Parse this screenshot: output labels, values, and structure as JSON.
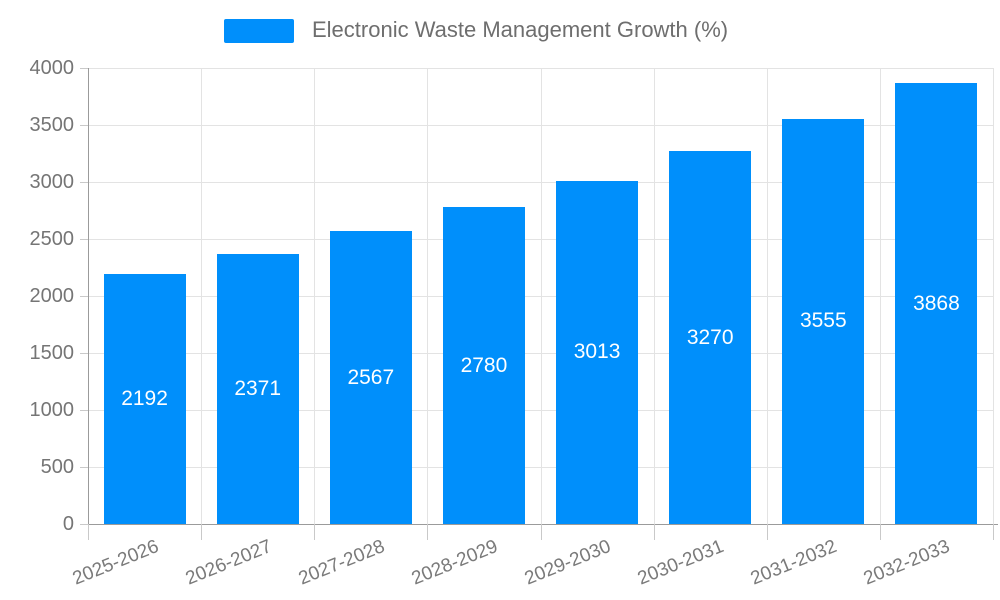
{
  "legend": {
    "label": "Electronic Waste Management Growth (%)"
  },
  "chart_data": {
    "type": "bar",
    "title": "Electronic Waste Management Growth (%)",
    "categories": [
      "2025-2026",
      "2026-2027",
      "2027-2028",
      "2028-2029",
      "2029-2030",
      "2030-2031",
      "2031-2032",
      "2032-2033"
    ],
    "values": [
      2192,
      2371,
      2567,
      2780,
      3013,
      3270,
      3555,
      3868
    ],
    "ylim": [
      0,
      4000
    ],
    "yticks": [
      0,
      500,
      1000,
      1500,
      2000,
      2500,
      3000,
      3500,
      4000
    ],
    "grid": true,
    "legend_position": "top",
    "data_labels": "centered-in-bar",
    "xlabel": "",
    "ylabel": "",
    "colors": {
      "bar": "#008FFB",
      "data_label": "#FFFFFF",
      "grid_line": "#E3E3E3",
      "axis_line": "#9B9B9B",
      "tick_mark": "#C9C9C9",
      "y_tick_text": "#757575",
      "x_tick_text": "#7A7A7A",
      "legend_text": "#6E6E6E"
    }
  }
}
